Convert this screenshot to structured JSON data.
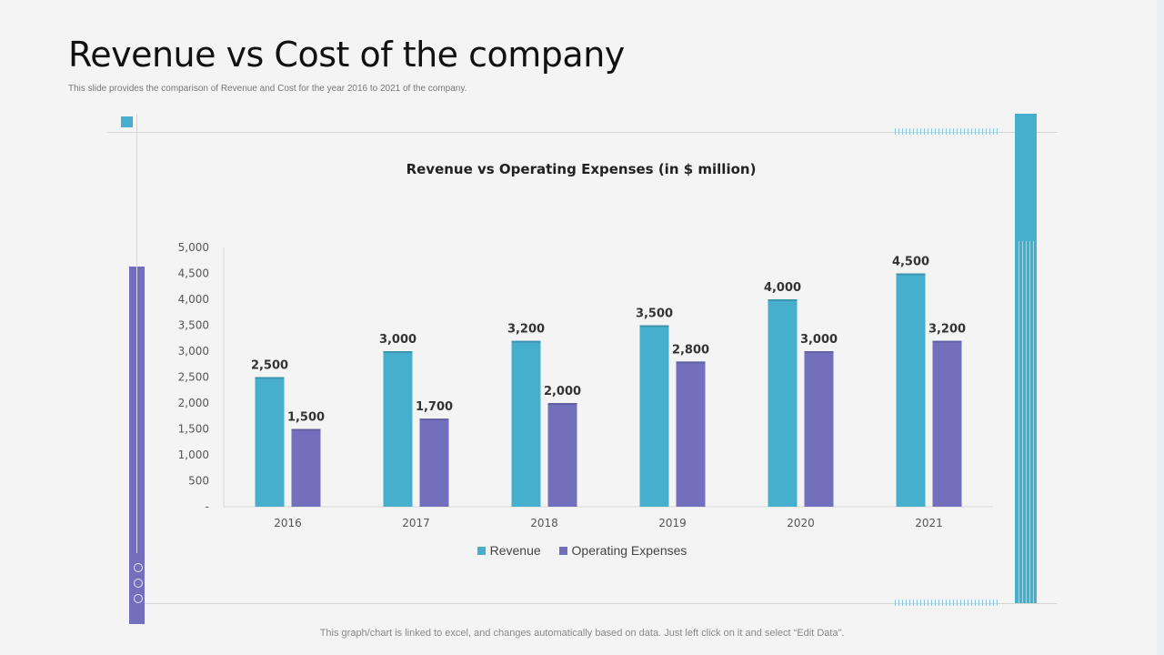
{
  "slide": {
    "title": "Revenue vs Cost of the company",
    "subtitle": "This slide provides the comparison of Revenue and Cost for the year 2016 to 2021 of the company.",
    "footer": "This graph/chart is linked to excel,  and changes automatically based on data. Just left click on it and select “Edit Data”."
  },
  "colors": {
    "revenue": "#46afce",
    "expenses": "#7270bd",
    "accent": "#46afce"
  },
  "chart_data": {
    "type": "bar",
    "title": "Revenue vs Operating Expenses (in $ million)",
    "xlabel": "",
    "ylabel": "",
    "categories": [
      "2016",
      "2017",
      "2018",
      "2019",
      "2020",
      "2021"
    ],
    "series": [
      {
        "name": "Revenue",
        "values": [
          2500,
          3000,
          3200,
          3500,
          4000,
          4500
        ],
        "labels": [
          "2,500",
          "3,000",
          "3,200",
          "3,500",
          "4,000",
          "4,500"
        ]
      },
      {
        "name": "Operating Expenses",
        "values": [
          1500,
          1700,
          2000,
          2800,
          3000,
          3200
        ],
        "labels": [
          "1,500",
          "1,700",
          "2,000",
          "2,800",
          "3,000",
          "3,200"
        ]
      }
    ],
    "ylim": [
      0,
      5000
    ],
    "yticks": [
      0,
      500,
      1000,
      1500,
      2000,
      2500,
      3000,
      3500,
      4000,
      4500,
      5000
    ],
    "ytick_labels": [
      "-",
      "500",
      "1,000",
      "1,500",
      "2,000",
      "2,500",
      "3,000",
      "3,500",
      "4,000",
      "4,500",
      "5,000"
    ],
    "legend": "bottom"
  }
}
